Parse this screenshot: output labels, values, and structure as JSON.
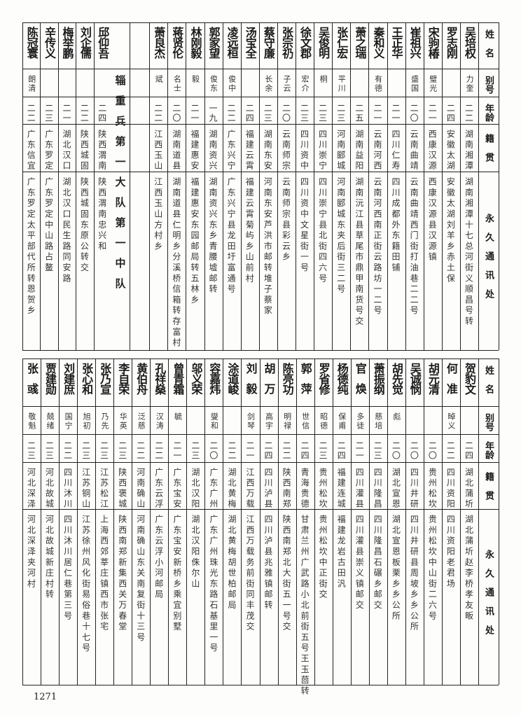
{
  "headers": {
    "name": "姓名",
    "alias": "别号",
    "age": "年龄",
    "native": "籍贯",
    "address": "永久通讯处"
  },
  "section_label": "辎重兵第一大队第一中队",
  "page_number": "1271",
  "top_table": {
    "rows": [
      {
        "name": "吴培权",
        "alias": "力奎",
        "age": "二二",
        "native": "湖南湘潭",
        "address": "湖南湘潭十七总河街义顺昌号转"
      },
      {
        "name": "罗志刚",
        "alias": "",
        "age": "二四",
        "native": "安徽太湖",
        "address": "安徽太湖刘羊乡赤土保"
      },
      {
        "name": "宋驹椿",
        "alias": "璧光",
        "age": "二一",
        "native": "西康汉源",
        "address": "西康汉源县汉源镇"
      },
      {
        "name": "崔祖兴",
        "alias": "盛国",
        "age": "二〇",
        "native": "云南曲靖",
        "address": "云南曲靖西门街打油巷二二号"
      },
      {
        "name": "王正华",
        "alias": "",
        "age": "二一",
        "native": "四川仁寿",
        "address": "四川成都外东籍田铺"
      },
      {
        "name": "秦和义",
        "alias": "有德",
        "age": "二一",
        "native": "云南河西",
        "address": "云南河西南正街云路坊一二号"
      },
      {
        "name": "萧之瑞",
        "alias": "",
        "age": "二五",
        "native": "湖南益阳",
        "address": "湖南沅江县草尾市鼎甲南货号交"
      },
      {
        "name": "张仁宏",
        "alias": "平川",
        "age": "二三",
        "native": "河南郾城",
        "address": "河南郾城东夹后街三二号"
      },
      {
        "name": "吴俊明",
        "alias": "桐",
        "age": "二三",
        "native": "四川崇宁",
        "address": "四川崇宁县北街四六号"
      },
      {
        "name": "徐文郡",
        "alias": "宏介",
        "age": "二三",
        "native": "四川资中",
        "address": "四川资中文星街一号"
      },
      {
        "name": "张宗礽",
        "alias": "子云",
        "age": "二〇",
        "native": "云南师宗",
        "address": "云南师宗县彩云乡"
      },
      {
        "name": "蔡守廉",
        "alias": "长余",
        "age": "二三",
        "native": "湖南东安",
        "address": "河南东安芦洪市邮转堆子蔡家"
      },
      {
        "name": "汤宝全",
        "alias": "",
        "age": "二四",
        "native": "福建云霄",
        "address": "福建云霄菊屿乡山前村"
      },
      {
        "name": "凌远桓",
        "alias": "俊中",
        "age": "二二",
        "native": "广东兴宁",
        "address": "广东兴宁县龙田圩富通号"
      },
      {
        "name": "郭家望",
        "alias": "俊东",
        "age": "一九",
        "native": "湖南资兴",
        "address": "湖南资兴东乡青腰墟邮转"
      },
      {
        "name": "林刚毅",
        "alias": "毅",
        "age": "二一",
        "native": "福建惠安",
        "address": "福建惠安东园邮局转五林乡"
      },
      {
        "name": "蒋贤伦",
        "alias": "名士",
        "age": "二〇",
        "native": "湖南道县",
        "address": "湖南道县仁明乡分溪桥信箱转存富村"
      },
      {
        "name": "萧良杰",
        "alias": "斌",
        "age": "二二",
        "native": "江西玉山",
        "address": "江西玉山方村乡"
      },
      {
        "name": "邱仰吾",
        "alias": "",
        "age": "二四",
        "native": "陕西渭南",
        "address": "陕西渭南忠兴和"
      },
      {
        "name": "刘企儒",
        "alias": "",
        "age": "二二",
        "native": "陕西城固",
        "address": "陕西城固东原公转交"
      },
      {
        "name": "梅举鹏",
        "alias": "",
        "age": "二一",
        "native": "湖北汉口",
        "address": "湖北汉口民生路同安路"
      },
      {
        "name": "辛传义",
        "alias": "",
        "age": "二三",
        "native": "广东罗定",
        "address": "广东罗定中山路占鳌"
      },
      {
        "name": "陈冠寰",
        "alias": "朗清",
        "age": "二二",
        "native": "广东信宜",
        "address": "广东罗定太平部代所转恩贺乡"
      }
    ]
  },
  "bottom_table": {
    "rows": [
      {
        "name": "贺豹文",
        "alias": "",
        "age": "二四",
        "native": "湖北蒲圻",
        "address": "湖北蒲圻赵李桥孝友畈"
      },
      {
        "name": "何准",
        "alias": "晫义",
        "age": "二二",
        "native": "四川资阳",
        "address": "四川资阳老君场"
      },
      {
        "name": "胡元清",
        "alias": "",
        "age": "二〇",
        "native": "贵州松坎",
        "address": "贵州松坎中山街二六号"
      },
      {
        "name": "吴诚悯",
        "alias": "",
        "age": "二〇",
        "native": "四川井研",
        "address": "四川井研县周坡乡乡公所"
      },
      {
        "name": "胡先觉",
        "alias": "彪",
        "age": "二〇",
        "native": "湖北宣恩",
        "address": "湖北宣恩板栗乡乡公所"
      },
      {
        "name": "萧振纲",
        "alias": "慈培",
        "age": "二三",
        "native": "四川隆昌",
        "address": "四川隆昌石碾乡邮交"
      },
      {
        "name": "官焕",
        "alias": "多徒",
        "age": "二一",
        "native": "四川灌县",
        "address": "四川灌县崇义镇邮交"
      },
      {
        "name": "杨德纯",
        "alias": "保甫",
        "age": "二四",
        "native": "福建连城",
        "address": "福建龙岩古田汎"
      },
      {
        "name": "罗省修",
        "alias": "昭德",
        "age": "二三",
        "native": "贵州松坎",
        "address": "贵州松坎中正街交"
      },
      {
        "name": "郭萍",
        "alias": "世信",
        "age": "二四",
        "native": "青海贵德",
        "address": "甘肃兰州广武路小北前街五号王玉茴转"
      },
      {
        "name": "陈亮功",
        "alias": "明禄",
        "age": "二二",
        "native": "陕西南郑",
        "address": "陕西南郑北大街五一号交"
      },
      {
        "name": "胡万",
        "alias": "高宇",
        "age": "二四",
        "native": "四川泸县",
        "address": "四川泸县兆雅镇邮转"
      },
      {
        "name": "刘毅",
        "alias": "剑琴",
        "age": "二一",
        "native": "江西万载",
        "address": "江西万载务前街同丰茂交"
      },
      {
        "name": "涂道峻",
        "alias": "",
        "age": "二二",
        "native": "湖北黄梅",
        "address": "湖北黄梅胡世柏邮局"
      },
      {
        "name": "容嘉炜",
        "alias": "燮和",
        "age": "二〇",
        "native": "广东广州",
        "address": "广东广州珠光东路石基里一号"
      },
      {
        "name": "邬义荣",
        "alias": "",
        "age": "二三",
        "native": "湖北汉阳",
        "address": "湖北汉阳侏尔山"
      },
      {
        "name": "曾青霜",
        "alias": "毓",
        "age": "二一",
        "native": "广东宝安",
        "address": "广东宝安新桥乡乘宜别墅"
      },
      {
        "name": "孔祥燊",
        "alias": "汉涛",
        "age": "二二",
        "native": "广东云浮",
        "address": "广东云浮小河邮局"
      },
      {
        "name": "黄伯舟",
        "alias": "泛慈",
        "age": "二二",
        "native": "河南确山",
        "address": "河南确山东关南复街十三号"
      },
      {
        "name": "李自荣",
        "alias": "华英",
        "age": "二三",
        "native": "陕西褒城",
        "address": "陕西南郑新集西关万春堂"
      },
      {
        "name": "张乃宣",
        "alias": "乃先",
        "age": "二三",
        "native": "江苏松江",
        "address": "上海西郊莘庄镇西市张宅"
      },
      {
        "name": "张心和",
        "alias": "旭初",
        "age": "二三",
        "native": "江苏铜山",
        "address": "江苏徐州风化街易俗巷十七号"
      },
      {
        "name": "刘建庶",
        "alias": "国宁",
        "age": "二二",
        "native": "四川沐川",
        "address": "四川沐川居仁巷第三号"
      },
      {
        "name": "贾建勋",
        "alias": "兢绪",
        "age": "二三",
        "native": "河北故城",
        "address": "河北故城新庄村转"
      },
      {
        "name": "张彧",
        "alias": "敬魁",
        "age": "二三",
        "native": "河北深泽",
        "address": "河北深泽夹河村"
      }
    ]
  }
}
